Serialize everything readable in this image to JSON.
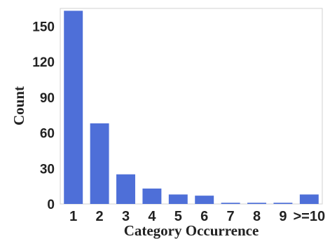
{
  "chart_data": {
    "type": "bar",
    "title": "",
    "xlabel": "Category Occurrence",
    "ylabel": "Count",
    "categories": [
      "1",
      "2",
      "3",
      "4",
      "5",
      "6",
      "7",
      "8",
      "9",
      ">=10"
    ],
    "values": [
      163,
      68,
      25,
      13,
      8,
      7,
      1,
      1,
      1,
      8
    ],
    "ylim": [
      0,
      165
    ],
    "yticks": [
      0,
      30,
      60,
      90,
      120,
      150
    ],
    "grid": false,
    "bar_color": "#4e6fd8",
    "frame_color": "#d0d0d0"
  }
}
